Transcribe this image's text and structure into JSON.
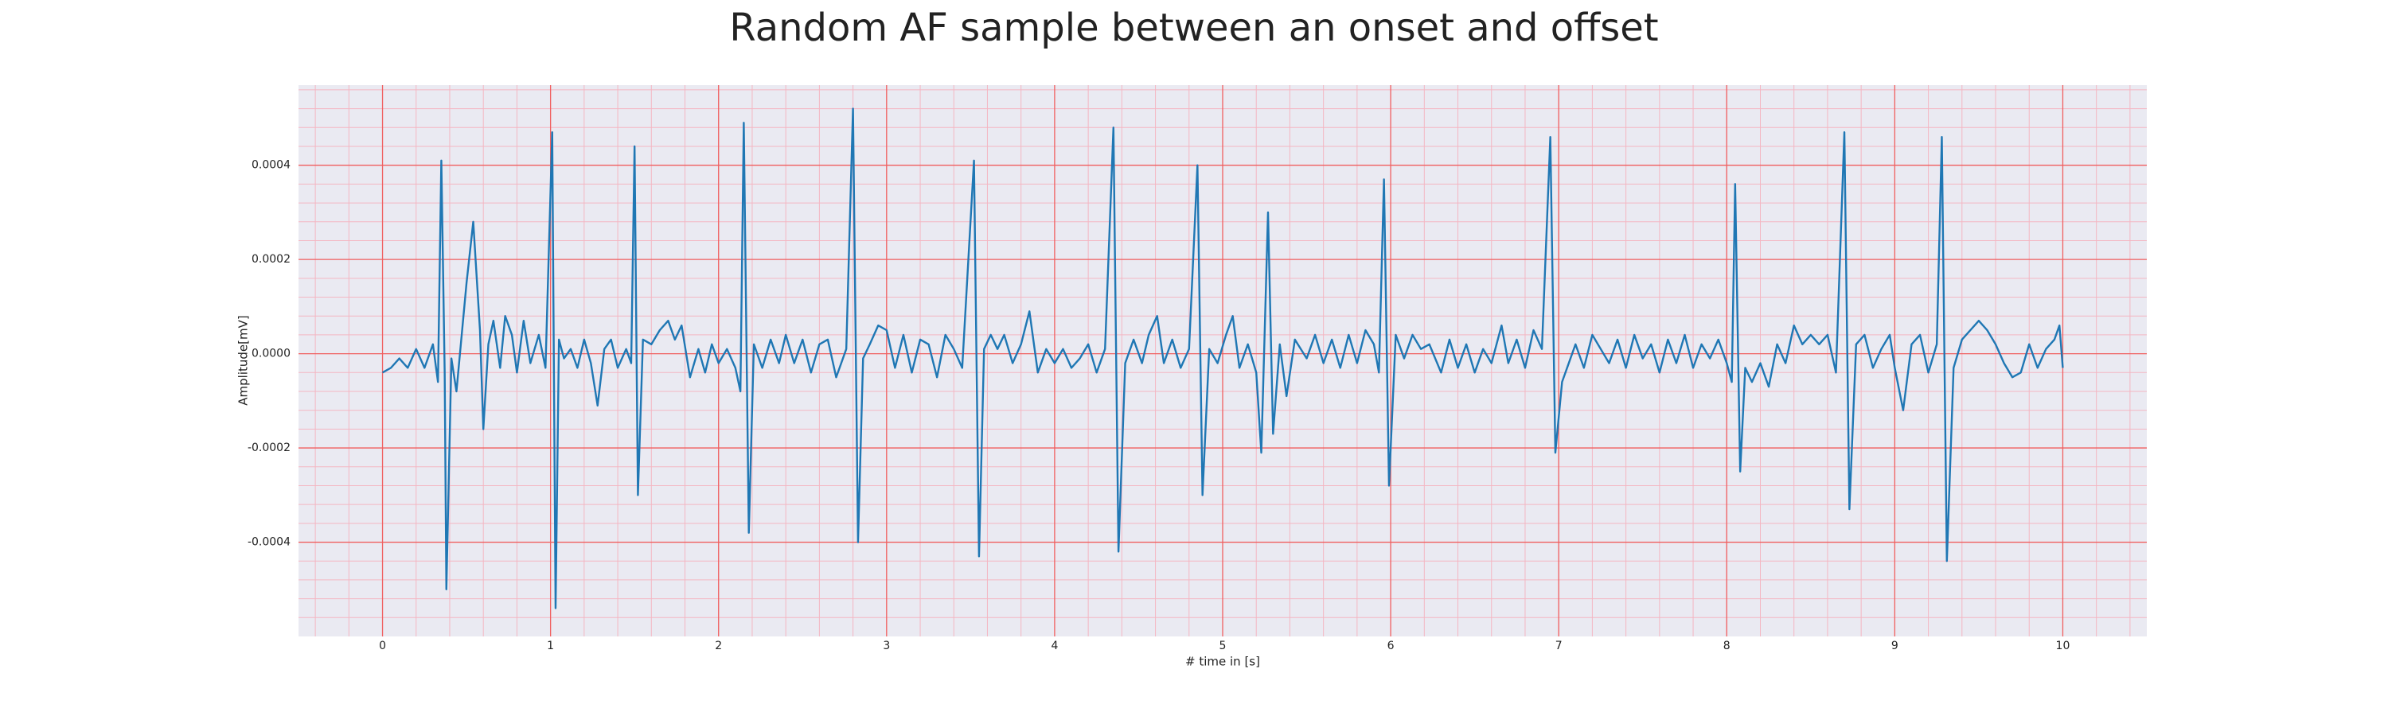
{
  "chart_data": {
    "type": "line",
    "title": "Random AF sample between an onset and offset",
    "xlabel": "# time in [s]",
    "ylabel": "Amplitude[mV]",
    "color": "#1f77b4",
    "grid": true,
    "xlim": [
      -0.5,
      10.5
    ],
    "ylim": [
      -0.0006,
      0.00057
    ],
    "xticks": [
      0,
      1,
      2,
      3,
      4,
      5,
      6,
      7,
      8,
      9,
      10
    ],
    "yticks": [
      -0.0004,
      -0.0002,
      {
        "value": 0,
        "label": "0.0000"
      },
      0.0002,
      0.0004
    ],
    "x": [
      0,
      0.05,
      0.1,
      0.15,
      0.2,
      0.25,
      0.3,
      0.33,
      0.35,
      0.37,
      0.38,
      0.41,
      0.44,
      0.5,
      0.54,
      0.58,
      0.6,
      0.63,
      0.66,
      0.7,
      0.73,
      0.77,
      0.8,
      0.84,
      0.88,
      0.93,
      0.97,
      1.01,
      1.03,
      1.05,
      1.08,
      1.12,
      1.16,
      1.2,
      1.24,
      1.28,
      1.32,
      1.36,
      1.4,
      1.45,
      1.48,
      1.5,
      1.52,
      1.55,
      1.6,
      1.65,
      1.7,
      1.74,
      1.78,
      1.83,
      1.88,
      1.92,
      1.96,
      2.0,
      2.05,
      2.1,
      2.13,
      2.15,
      2.18,
      2.21,
      2.26,
      2.31,
      2.36,
      2.4,
      2.45,
      2.5,
      2.55,
      2.6,
      2.65,
      2.7,
      2.76,
      2.8,
      2.83,
      2.86,
      2.9,
      2.95,
      3.0,
      3.05,
      3.1,
      3.15,
      3.2,
      3.25,
      3.3,
      3.35,
      3.4,
      3.45,
      3.52,
      3.55,
      3.58,
      3.62,
      3.66,
      3.7,
      3.75,
      3.8,
      3.85,
      3.9,
      3.95,
      4.0,
      4.05,
      4.1,
      4.15,
      4.2,
      4.25,
      4.3,
      4.35,
      4.38,
      4.42,
      4.47,
      4.52,
      4.56,
      4.61,
      4.65,
      4.7,
      4.75,
      4.8,
      4.85,
      4.88,
      4.92,
      4.97,
      5.02,
      5.06,
      5.1,
      5.15,
      5.2,
      5.23,
      5.27,
      5.3,
      5.34,
      5.38,
      5.43,
      5.5,
      5.55,
      5.6,
      5.65,
      5.7,
      5.75,
      5.8,
      5.85,
      5.9,
      5.93,
      5.96,
      5.99,
      6.03,
      6.08,
      6.13,
      6.18,
      6.23,
      6.3,
      6.35,
      6.4,
      6.45,
      6.5,
      6.55,
      6.6,
      6.66,
      6.7,
      6.75,
      6.8,
      6.85,
      6.9,
      6.95,
      6.98,
      7.02,
      7.06,
      7.1,
      7.15,
      7.2,
      7.25,
      7.3,
      7.35,
      7.4,
      7.45,
      7.5,
      7.55,
      7.6,
      7.65,
      7.7,
      7.75,
      7.8,
      7.85,
      7.9,
      7.95,
      8.0,
      8.03,
      8.05,
      8.08,
      8.11,
      8.15,
      8.2,
      8.25,
      8.3,
      8.35,
      8.4,
      8.45,
      8.5,
      8.55,
      8.6,
      8.65,
      8.7,
      8.73,
      8.77,
      8.82,
      8.87,
      8.92,
      8.97,
      9.0,
      9.05,
      9.1,
      9.15,
      9.2,
      9.25,
      9.28,
      9.31,
      9.35,
      9.4,
      9.45,
      9.5,
      9.55,
      9.6,
      9.65,
      9.7,
      9.75,
      9.8,
      9.85,
      9.9,
      9.95,
      9.98,
      10.0
    ],
    "values": [
      -4e-05,
      -3e-05,
      -1e-05,
      -3e-05,
      1e-05,
      -3e-05,
      2e-05,
      -6e-05,
      0.00041,
      -4e-05,
      -0.0005,
      -1e-05,
      -8e-05,
      0.00015,
      0.00028,
      5e-05,
      -0.00016,
      2e-05,
      7e-05,
      -3e-05,
      8e-05,
      4e-05,
      -4e-05,
      7e-05,
      -2e-05,
      4e-05,
      -3e-05,
      0.00047,
      -0.00054,
      3e-05,
      -1e-05,
      1e-05,
      -3e-05,
      3e-05,
      -2e-05,
      -0.00011,
      1e-05,
      3e-05,
      -3e-05,
      1e-05,
      -2e-05,
      0.00044,
      -0.0003,
      3e-05,
      2e-05,
      5e-05,
      7e-05,
      3e-05,
      6e-05,
      -5e-05,
      1e-05,
      -4e-05,
      2e-05,
      -2e-05,
      1e-05,
      -3e-05,
      -8e-05,
      0.00049,
      -0.00038,
      2e-05,
      -3e-05,
      3e-05,
      -2e-05,
      4e-05,
      -2e-05,
      3e-05,
      -4e-05,
      2e-05,
      3e-05,
      -5e-05,
      1e-05,
      0.00052,
      -0.0004,
      -1e-05,
      2e-05,
      6e-05,
      5e-05,
      -3e-05,
      4e-05,
      -4e-05,
      3e-05,
      2e-05,
      -5e-05,
      4e-05,
      1e-05,
      -3e-05,
      0.00041,
      -0.00043,
      1e-05,
      4e-05,
      1e-05,
      4e-05,
      -2e-05,
      2e-05,
      9e-05,
      -4e-05,
      1e-05,
      -2e-05,
      1e-05,
      -3e-05,
      -1e-05,
      2e-05,
      -4e-05,
      1e-05,
      0.00048,
      -0.00042,
      -2e-05,
      3e-05,
      -2e-05,
      4e-05,
      8e-05,
      -2e-05,
      3e-05,
      -3e-05,
      1e-05,
      0.0004,
      -0.0003,
      1e-05,
      -2e-05,
      4e-05,
      8e-05,
      -3e-05,
      2e-05,
      -4e-05,
      -0.00021,
      0.0003,
      -0.00017,
      2e-05,
      -9e-05,
      3e-05,
      -1e-05,
      4e-05,
      -2e-05,
      3e-05,
      -3e-05,
      4e-05,
      -2e-05,
      5e-05,
      2e-05,
      -4e-05,
      0.00037,
      -0.00028,
      4e-05,
      -1e-05,
      4e-05,
      1e-05,
      2e-05,
      -4e-05,
      3e-05,
      -3e-05,
      2e-05,
      -4e-05,
      1e-05,
      -2e-05,
      6e-05,
      -2e-05,
      3e-05,
      -3e-05,
      5e-05,
      1e-05,
      0.00046,
      -0.00021,
      -6e-05,
      -2e-05,
      2e-05,
      -3e-05,
      4e-05,
      1e-05,
      -2e-05,
      3e-05,
      -3e-05,
      4e-05,
      -1e-05,
      2e-05,
      -4e-05,
      3e-05,
      -2e-05,
      4e-05,
      -3e-05,
      2e-05,
      -1e-05,
      3e-05,
      -2e-05,
      -6e-05,
      0.00036,
      -0.00025,
      -3e-05,
      -6e-05,
      -2e-05,
      -7e-05,
      2e-05,
      -2e-05,
      6e-05,
      2e-05,
      4e-05,
      2e-05,
      4e-05,
      -4e-05,
      0.00047,
      -0.00033,
      2e-05,
      4e-05,
      -3e-05,
      1e-05,
      4e-05,
      -3e-05,
      -0.00012,
      2e-05,
      4e-05,
      -4e-05,
      2e-05,
      0.00046,
      -0.00044,
      -3e-05,
      3e-05,
      5e-05,
      7e-05,
      5e-05,
      2e-05,
      -2e-05,
      -5e-05,
      -4e-05,
      2e-05,
      -3e-05,
      1e-05,
      3e-05,
      6e-05,
      -3e-05
    ]
  }
}
